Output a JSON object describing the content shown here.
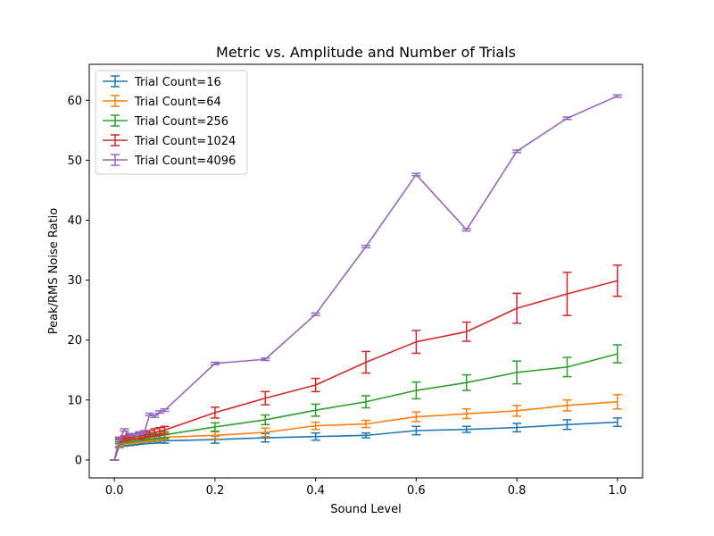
{
  "chart_data": {
    "type": "line",
    "title": "Metric vs. Amplitude and Number of Trials",
    "xlabel": "Sound Level",
    "ylabel": "Peak/RMS Noise Ratio",
    "xlim": [
      -0.05,
      1.05
    ],
    "ylim": [
      -3,
      66
    ],
    "x_ticks": [
      "0.0",
      "0.2",
      "0.4",
      "0.6",
      "0.8",
      "1.0"
    ],
    "y_ticks": [
      "0",
      "10",
      "20",
      "30",
      "40",
      "50",
      "60"
    ],
    "x_tick_values": [
      0,
      0.2,
      0.4,
      0.6,
      0.8,
      1.0
    ],
    "y_tick_values": [
      0,
      10,
      20,
      30,
      40,
      50,
      60
    ],
    "legend_position": "upper-left",
    "grid": false,
    "x": [
      0,
      0.01,
      0.02,
      0.03,
      0.04,
      0.05,
      0.06,
      0.07,
      0.08,
      0.09,
      0.1,
      0.2,
      0.3,
      0.4,
      0.5,
      0.6,
      0.7,
      0.8,
      0.9,
      1.0
    ],
    "series": [
      {
        "name": "Trial Count=16",
        "color": "#1f77b4",
        "values": [
          0,
          2.4,
          2.6,
          2.7,
          2.8,
          2.9,
          3.0,
          3.05,
          3.1,
          3.15,
          3.2,
          3.4,
          3.7,
          3.9,
          4.1,
          4.9,
          5.1,
          5.4,
          5.9,
          6.3
        ],
        "errors": [
          0,
          0.3,
          0.3,
          0.3,
          0.3,
          0.3,
          0.3,
          0.3,
          0.3,
          0.3,
          0.4,
          0.6,
          0.7,
          0.6,
          0.4,
          0.7,
          0.5,
          0.7,
          0.8,
          0.7
        ]
      },
      {
        "name": "Trial Count=64",
        "color": "#ff7f0e",
        "values": [
          0,
          2.8,
          3.0,
          3.1,
          3.2,
          3.3,
          3.4,
          3.5,
          3.6,
          3.7,
          3.8,
          4.1,
          4.6,
          5.7,
          6.0,
          7.2,
          7.7,
          8.2,
          9.1,
          9.7
        ],
        "errors": [
          0,
          0.5,
          0.4,
          0.4,
          0.4,
          0.4,
          0.4,
          0.4,
          0.4,
          0.4,
          0.4,
          0.6,
          0.7,
          0.6,
          0.6,
          0.8,
          0.8,
          0.9,
          0.9,
          1.2
        ]
      },
      {
        "name": "Trial Count=256",
        "color": "#2ca02c",
        "values": [
          0,
          3.1,
          3.3,
          3.4,
          3.5,
          3.6,
          3.7,
          3.8,
          3.9,
          4.0,
          4.2,
          5.5,
          6.7,
          8.3,
          9.7,
          11.6,
          12.9,
          14.6,
          15.5,
          17.7
        ],
        "errors": [
          0,
          0.4,
          0.4,
          0.4,
          0.4,
          0.4,
          0.4,
          0.4,
          0.4,
          0.4,
          0.5,
          0.7,
          0.8,
          1.0,
          1.0,
          1.4,
          1.3,
          1.9,
          1.6,
          1.5
        ]
      },
      {
        "name": "Trial Count=1024",
        "color": "#d62728",
        "values": [
          0,
          3.4,
          3.6,
          3.8,
          3.9,
          4.0,
          4.2,
          4.4,
          4.6,
          4.8,
          5.0,
          7.9,
          10.3,
          12.5,
          16.3,
          19.7,
          21.4,
          25.3,
          27.7,
          29.9
        ],
        "errors": [
          0,
          0.4,
          0.4,
          0.4,
          0.4,
          0.5,
          0.5,
          0.5,
          0.6,
          0.6,
          0.6,
          0.9,
          1.1,
          1.1,
          1.8,
          1.9,
          1.6,
          2.5,
          3.6,
          2.6
        ]
      },
      {
        "name": "Trial Count=4096",
        "color": "#9467bd",
        "values": [
          0,
          3.5,
          5.0,
          4.2,
          4.2,
          4.5,
          4.7,
          7.6,
          7.3,
          8.0,
          8.3,
          16.1,
          16.8,
          24.3,
          35.6,
          47.6,
          38.4,
          51.5,
          57.0,
          60.7
        ],
        "errors": [
          0,
          0.2,
          0.2,
          0.2,
          0.2,
          0.2,
          0.2,
          0.2,
          0.2,
          0.2,
          0.2,
          0.2,
          0.2,
          0.2,
          0.2,
          0.2,
          0.2,
          0.2,
          0.2,
          0.2
        ]
      }
    ]
  }
}
